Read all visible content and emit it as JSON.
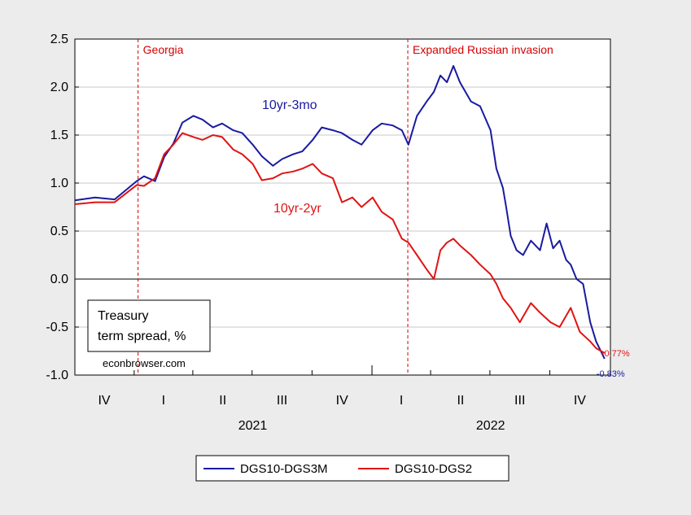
{
  "chart_data": {
    "type": "line",
    "ylim": [
      -1.0,
      2.5
    ],
    "y_ticks": [
      "2.5",
      "2.0",
      "1.5",
      "1.0",
      "0.5",
      "0.0",
      "-0.5",
      "-1.0"
    ],
    "y_tick_values": [
      2.5,
      2.0,
      1.5,
      1.0,
      0.5,
      0.0,
      -0.5,
      -1.0
    ],
    "x_range": [
      "2020-10-01",
      "2023-01-01"
    ],
    "quarter_labels": [
      {
        "label": "IV",
        "date": "2020-11-15"
      },
      {
        "label": "I",
        "date": "2021-02-14"
      },
      {
        "label": "II",
        "date": "2021-05-16"
      },
      {
        "label": "III",
        "date": "2021-08-15"
      },
      {
        "label": "IV",
        "date": "2021-11-15"
      },
      {
        "label": "I",
        "date": "2022-02-14"
      },
      {
        "label": "II",
        "date": "2022-05-16"
      },
      {
        "label": "III",
        "date": "2022-08-15"
      },
      {
        "label": "IV",
        "date": "2022-11-15"
      }
    ],
    "year_labels": [
      {
        "label": "2021",
        "date": "2021-07-01"
      },
      {
        "label": "2022",
        "date": "2022-07-01"
      }
    ],
    "zero_line": true,
    "events": [
      {
        "label": "Georgia",
        "date": "2021-01-06"
      },
      {
        "label": "Expanded Russian invasion",
        "date": "2022-02-24"
      }
    ],
    "series": [
      {
        "name": "DGS10-DGS3M",
        "color": "#1a1aa0",
        "inline_label": "10yr-3mo",
        "end_label": "-0.83%",
        "x": [
          "2020-10-01",
          "2020-11-01",
          "2020-12-01",
          "2021-01-04",
          "2021-01-15",
          "2021-02-01",
          "2021-02-15",
          "2021-03-01",
          "2021-03-15",
          "2021-04-01",
          "2021-04-15",
          "2021-05-01",
          "2021-05-15",
          "2021-06-01",
          "2021-06-15",
          "2021-07-01",
          "2021-07-15",
          "2021-08-01",
          "2021-08-15",
          "2021-09-01",
          "2021-09-15",
          "2021-10-01",
          "2021-10-15",
          "2021-11-01",
          "2021-11-15",
          "2021-12-01",
          "2021-12-15",
          "2022-01-01",
          "2022-01-15",
          "2022-02-01",
          "2022-02-15",
          "2022-02-25",
          "2022-03-10",
          "2022-03-25",
          "2022-04-05",
          "2022-04-15",
          "2022-04-25",
          "2022-05-05",
          "2022-05-15",
          "2022-06-01",
          "2022-06-15",
          "2022-07-01",
          "2022-07-10",
          "2022-07-20",
          "2022-07-25",
          "2022-08-01",
          "2022-08-10",
          "2022-08-20",
          "2022-09-01",
          "2022-09-15",
          "2022-09-25",
          "2022-10-05",
          "2022-10-15",
          "2022-10-25",
          "2022-11-01",
          "2022-11-10",
          "2022-11-20",
          "2022-12-01",
          "2022-12-10",
          "2022-12-23"
        ],
        "y": [
          0.82,
          0.85,
          0.83,
          1.02,
          1.07,
          1.02,
          1.27,
          1.41,
          1.63,
          1.7,
          1.66,
          1.58,
          1.62,
          1.55,
          1.52,
          1.4,
          1.28,
          1.18,
          1.25,
          1.3,
          1.33,
          1.45,
          1.58,
          1.55,
          1.52,
          1.45,
          1.4,
          1.55,
          1.62,
          1.6,
          1.55,
          1.4,
          1.7,
          1.85,
          1.95,
          2.12,
          2.05,
          2.22,
          2.05,
          1.85,
          1.8,
          1.55,
          1.15,
          0.95,
          0.75,
          0.45,
          0.3,
          0.25,
          0.4,
          0.3,
          0.58,
          0.32,
          0.4,
          0.2,
          0.15,
          0.0,
          -0.05,
          -0.45,
          -0.65,
          -0.83
        ]
      },
      {
        "name": "DGS10-DGS2",
        "color": "#e01414",
        "inline_label": "10yr-2yr",
        "end_label": "-0.77%",
        "x": [
          "2020-10-01",
          "2020-11-01",
          "2020-12-01",
          "2021-01-04",
          "2021-01-15",
          "2021-02-01",
          "2021-02-15",
          "2021-03-01",
          "2021-03-15",
          "2021-04-01",
          "2021-04-15",
          "2021-05-01",
          "2021-05-15",
          "2021-06-01",
          "2021-06-15",
          "2021-07-01",
          "2021-07-15",
          "2021-08-01",
          "2021-08-15",
          "2021-09-01",
          "2021-09-15",
          "2021-10-01",
          "2021-10-15",
          "2021-11-01",
          "2021-11-15",
          "2021-12-01",
          "2021-12-15",
          "2022-01-01",
          "2022-01-15",
          "2022-02-01",
          "2022-02-15",
          "2022-02-25",
          "2022-03-10",
          "2022-03-25",
          "2022-04-05",
          "2022-04-15",
          "2022-04-25",
          "2022-05-05",
          "2022-05-15",
          "2022-06-01",
          "2022-06-15",
          "2022-07-01",
          "2022-07-10",
          "2022-07-20",
          "2022-08-01",
          "2022-08-15",
          "2022-09-01",
          "2022-09-15",
          "2022-10-01",
          "2022-10-15",
          "2022-11-01",
          "2022-11-15",
          "2022-12-01",
          "2022-12-10",
          "2022-12-23"
        ],
        "y": [
          0.78,
          0.8,
          0.8,
          0.98,
          0.97,
          1.05,
          1.3,
          1.4,
          1.52,
          1.48,
          1.45,
          1.5,
          1.48,
          1.35,
          1.3,
          1.2,
          1.03,
          1.05,
          1.1,
          1.12,
          1.15,
          1.2,
          1.1,
          1.05,
          0.8,
          0.85,
          0.75,
          0.85,
          0.7,
          0.62,
          0.42,
          0.38,
          0.25,
          0.1,
          0.0,
          0.3,
          0.38,
          0.42,
          0.35,
          0.25,
          0.15,
          0.05,
          -0.05,
          -0.2,
          -0.3,
          -0.45,
          -0.25,
          -0.35,
          -0.45,
          -0.5,
          -0.3,
          -0.55,
          -0.65,
          -0.72,
          -0.77
        ]
      }
    ]
  },
  "note_box": {
    "line1": "Treasury",
    "line2": "term spread, %",
    "source": "econbrowser.com"
  },
  "legend": [
    {
      "label": "DGS10-DGS3M",
      "color": "#1a1aa0"
    },
    {
      "label": "DGS10-DGS2",
      "color": "#e01414"
    }
  ]
}
